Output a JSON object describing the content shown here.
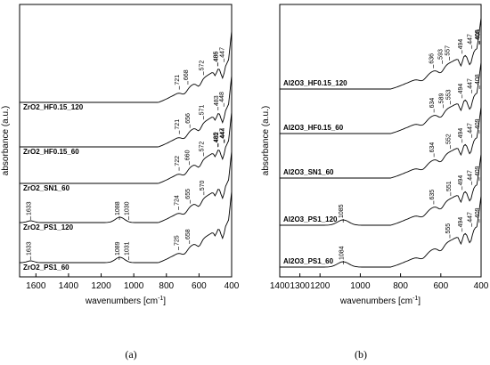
{
  "chart_data": [
    {
      "type": "line",
      "panel_label": "(a)",
      "xlabel": "wavenumbers [cm",
      "xlabel_sup": "-1",
      "xlabel_end": "]",
      "ylabel": "absorbance (a.u.)",
      "xlim": [
        1700,
        400
      ],
      "x_reversed": true,
      "xticks": [
        "1600",
        "1400",
        "1200",
        "1000",
        "800",
        "600",
        "400"
      ],
      "series": [
        {
          "name": "ZrO2_HF0.15_120",
          "peaks": [
            "721",
            "668",
            "572",
            "486",
            "447",
            "485"
          ]
        },
        {
          "name": "ZrO2_HF0.15_60",
          "peaks": [
            "721",
            "656",
            "571",
            "483",
            "448"
          ]
        },
        {
          "name": "ZrO2_SN1_60",
          "peaks": [
            "722",
            "660",
            "572",
            "485",
            "447",
            "482",
            "444"
          ]
        },
        {
          "name": "ZrO2_PS1_120",
          "peaks": [
            "1633",
            "1088",
            "1030",
            "724",
            "655",
            "570"
          ]
        },
        {
          "name": "ZrO2_PS1_60",
          "peaks": [
            "1633",
            "1089",
            "1031",
            "725",
            "658"
          ]
        }
      ]
    },
    {
      "type": "line",
      "panel_label": "(b)",
      "xlabel": "wavenumbers [cm",
      "xlabel_sup": "-1",
      "xlabel_end": "]",
      "ylabel": "absorbance (a.u.)",
      "xlim": [
        1400,
        400
      ],
      "x_reversed": true,
      "xticks": [
        "1400",
        "1300",
        "1200",
        "1000",
        "800",
        "600",
        "400"
      ],
      "series": [
        {
          "name": "Al2O3_HF0.15_120",
          "peaks": [
            "636",
            "593",
            "557",
            "494",
            "447",
            "406",
            "409"
          ]
        },
        {
          "name": "Al2O3_HF0.15_60",
          "peaks": [
            "634",
            "589",
            "553",
            "494",
            "447",
            "408"
          ]
        },
        {
          "name": "Al2O3_SN1_60",
          "peaks": [
            "634",
            "552",
            "494",
            "447",
            "409"
          ]
        },
        {
          "name": "Al2O3_PS1_120",
          "peaks": [
            "1085",
            "635",
            "551",
            "494",
            "447",
            "409"
          ]
        },
        {
          "name": "Al2O3_PS1_60",
          "peaks": [
            "1084",
            "555",
            "494",
            "447",
            "409"
          ]
        }
      ]
    }
  ]
}
